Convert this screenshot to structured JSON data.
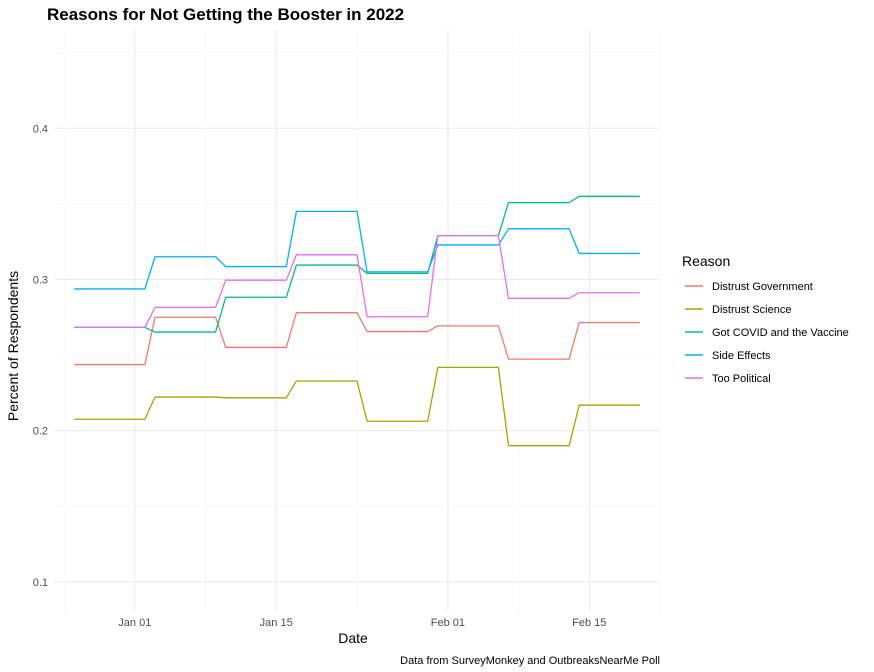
{
  "chart_data": {
    "type": "line",
    "title": "Reasons for Not Getting the Booster in 2022",
    "xlabel": "Date",
    "ylabel": "Percent of Respondents",
    "caption": "Data from SurveyMonkey and OutbreaksNearMe Poll",
    "x_ticks": [
      {
        "date": "2022-01-01",
        "label": "Jan 01"
      },
      {
        "date": "2022-01-15",
        "label": "Jan 15"
      },
      {
        "date": "2022-02-01",
        "label": "Feb 01"
      },
      {
        "date": "2022-02-15",
        "label": "Feb 15"
      }
    ],
    "x_minor_dates": [
      "2021-12-25",
      "2022-01-08",
      "2022-01-23",
      "2022-02-08",
      "2022-02-22"
    ],
    "xlim": [
      "2021-12-24",
      "2022-02-22"
    ],
    "ylim": [
      0.08,
      0.465
    ],
    "y_ticks": [
      0.1,
      0.2,
      0.3,
      0.4
    ],
    "y_minor": [
      0.15,
      0.25,
      0.35,
      0.45
    ],
    "grid": true,
    "legend": {
      "title": "Reason",
      "position": "right"
    },
    "series": [
      {
        "name": "Distrust Government",
        "color": "#F8766D",
        "points": [
          [
            "2021-12-26",
            0.2437
          ],
          [
            "2022-01-02",
            0.2437
          ],
          [
            "2022-01-03",
            0.275
          ],
          [
            "2022-01-09",
            0.275
          ],
          [
            "2022-01-10",
            0.255
          ],
          [
            "2022-01-16",
            0.255
          ],
          [
            "2022-01-17",
            0.278
          ],
          [
            "2022-01-23",
            0.278
          ],
          [
            "2022-01-24",
            0.2655
          ],
          [
            "2022-01-30",
            0.2655
          ],
          [
            "2022-01-31",
            0.2693
          ],
          [
            "2022-02-06",
            0.2693
          ],
          [
            "2022-02-07",
            0.2473
          ],
          [
            "2022-02-13",
            0.2473
          ],
          [
            "2022-02-14",
            0.2715
          ],
          [
            "2022-02-20",
            0.2715
          ]
        ]
      },
      {
        "name": "Distrust Science",
        "color": "#A3A500",
        "points": [
          [
            "2021-12-26",
            0.2075
          ],
          [
            "2022-01-02",
            0.2075
          ],
          [
            "2022-01-03",
            0.2222
          ],
          [
            "2022-01-09",
            0.2222
          ],
          [
            "2022-01-10",
            0.2217
          ],
          [
            "2022-01-16",
            0.2217
          ],
          [
            "2022-01-17",
            0.2328
          ],
          [
            "2022-01-23",
            0.2328
          ],
          [
            "2022-01-24",
            0.2062
          ],
          [
            "2022-01-30",
            0.2062
          ],
          [
            "2022-01-31",
            0.2418
          ],
          [
            "2022-02-06",
            0.2418
          ],
          [
            "2022-02-07",
            0.19
          ],
          [
            "2022-02-13",
            0.19
          ],
          [
            "2022-02-14",
            0.2168
          ],
          [
            "2022-02-20",
            0.2168
          ]
        ]
      },
      {
        "name": "Got COVID and the Vaccine",
        "color": "#00BF7D",
        "points": [
          [
            "2021-12-26",
            0.2683
          ],
          [
            "2022-01-02",
            0.2683
          ],
          [
            "2022-01-03",
            0.2652
          ],
          [
            "2022-01-09",
            0.2652
          ],
          [
            "2022-01-10",
            0.2882
          ],
          [
            "2022-01-16",
            0.2882
          ],
          [
            "2022-01-17",
            0.3095
          ],
          [
            "2022-01-23",
            0.3095
          ],
          [
            "2022-01-24",
            0.304
          ],
          [
            "2022-01-30",
            0.304
          ],
          [
            "2022-01-31",
            0.329
          ],
          [
            "2022-02-06",
            0.329
          ],
          [
            "2022-02-07",
            0.3508
          ],
          [
            "2022-02-13",
            0.3508
          ],
          [
            "2022-02-14",
            0.355
          ],
          [
            "2022-02-20",
            0.355
          ]
        ]
      },
      {
        "name": "Side Effects",
        "color": "#00B0F6",
        "points": [
          [
            "2021-12-26",
            0.2937
          ],
          [
            "2022-01-02",
            0.2937
          ],
          [
            "2022-01-03",
            0.315
          ],
          [
            "2022-01-09",
            0.315
          ],
          [
            "2022-01-10",
            0.3085
          ],
          [
            "2022-01-16",
            0.3085
          ],
          [
            "2022-01-17",
            0.345
          ],
          [
            "2022-01-23",
            0.345
          ],
          [
            "2022-01-24",
            0.305
          ],
          [
            "2022-01-30",
            0.305
          ],
          [
            "2022-01-31",
            0.3228
          ],
          [
            "2022-02-06",
            0.3228
          ],
          [
            "2022-02-07",
            0.3335
          ],
          [
            "2022-02-13",
            0.3335
          ],
          [
            "2022-02-14",
            0.3172
          ],
          [
            "2022-02-20",
            0.3172
          ]
        ]
      },
      {
        "name": "Too Political",
        "color": "#E76BF3",
        "points": [
          [
            "2021-12-26",
            0.2683
          ],
          [
            "2022-01-02",
            0.2683
          ],
          [
            "2022-01-03",
            0.2815
          ],
          [
            "2022-01-09",
            0.2815
          ],
          [
            "2022-01-10",
            0.2995
          ],
          [
            "2022-01-16",
            0.2995
          ],
          [
            "2022-01-17",
            0.3163
          ],
          [
            "2022-01-23",
            0.3163
          ],
          [
            "2022-01-24",
            0.2753
          ],
          [
            "2022-01-30",
            0.2753
          ],
          [
            "2022-01-31",
            0.329
          ],
          [
            "2022-02-06",
            0.329
          ],
          [
            "2022-02-07",
            0.2875
          ],
          [
            "2022-02-13",
            0.2875
          ],
          [
            "2022-02-14",
            0.2912
          ],
          [
            "2022-02-20",
            0.2912
          ]
        ]
      }
    ]
  }
}
